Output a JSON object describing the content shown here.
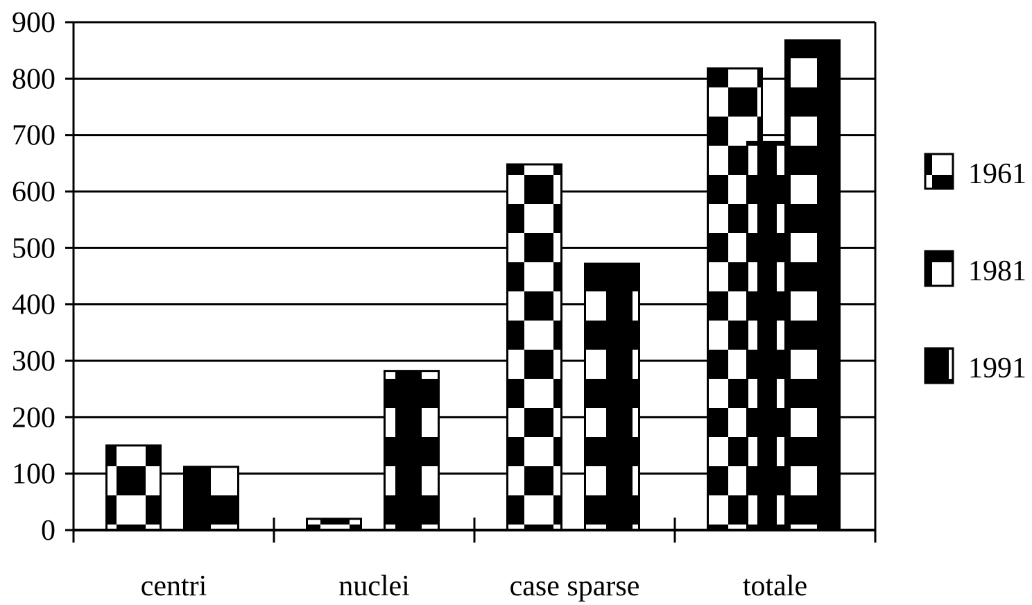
{
  "chart_data": {
    "type": "bar",
    "title": "",
    "xlabel": "",
    "ylabel": "",
    "categories": [
      "centri",
      "nuclei",
      "case sparse",
      "totale"
    ],
    "series": [
      {
        "name": "1961",
        "values": [
          150,
          20,
          648,
          818
        ]
      },
      {
        "name": "1981",
        "values": [
          null,
          null,
          null,
          688
        ]
      },
      {
        "name": "1991",
        "values": [
          112,
          282,
          472,
          868
        ]
      }
    ],
    "ylim": [
      0,
      900
    ],
    "yticks": [
      "0",
      "100",
      "200",
      "300",
      "400",
      "500",
      "600",
      "700",
      "800",
      "900"
    ],
    "grid": true,
    "legend_position": "right"
  }
}
